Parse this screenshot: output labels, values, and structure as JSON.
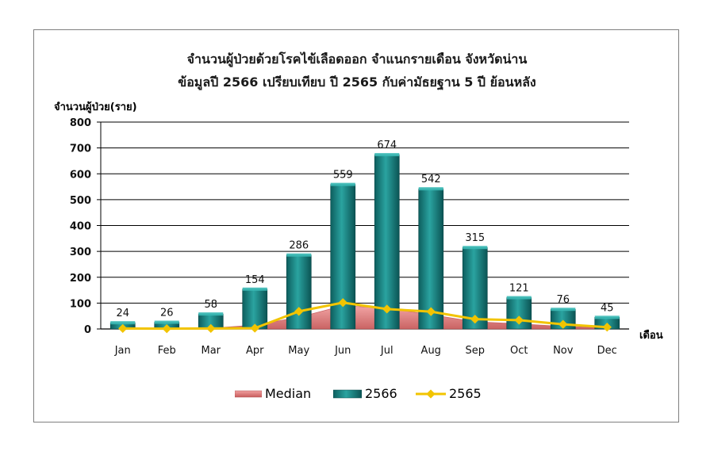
{
  "chart_data": {
    "type": "bar",
    "title": "จำนวนผู้ป่วยด้วยโรคไข้เลือดออก จำแนกรายเดือน จังหวัดน่าน",
    "subtitle": "ข้อมูลปี 2566 เปรียบเทียบ ปี 2565 กับค่ามัธยฐาน 5 ปี ย้อนหลัง",
    "ylabel": "จำนวนผู้ป่วย(ราย)",
    "xlabel": "เดือน",
    "ylim": [
      0,
      800
    ],
    "yticks": [
      0,
      100,
      200,
      300,
      400,
      500,
      600,
      700,
      800
    ],
    "categories": [
      "Jan",
      "Feb",
      "Mar",
      "Apr",
      "May",
      "Jun",
      "Jul",
      "Aug",
      "Sep",
      "Oct",
      "Nov",
      "Dec"
    ],
    "grid": true,
    "legend_position": "bottom",
    "series": [
      {
        "name": "Median",
        "type": "area",
        "color": "#e07a7a",
        "values": [
          2,
          2,
          3,
          15,
          45,
          90,
          80,
          55,
          28,
          20,
          10,
          5
        ]
      },
      {
        "name": "2566",
        "type": "bar",
        "color": "#1a8080",
        "values": [
          24,
          26,
          58,
          154,
          286,
          559,
          674,
          542,
          315,
          121,
          76,
          45
        ]
      },
      {
        "name": "2565",
        "type": "line",
        "color": "#f2c400",
        "values": [
          2,
          1,
          2,
          3,
          68,
          102,
          77,
          67,
          38,
          34,
          18,
          7
        ]
      }
    ]
  }
}
